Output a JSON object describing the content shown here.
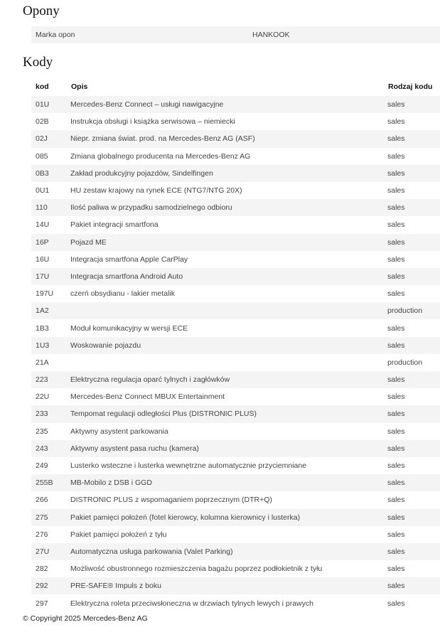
{
  "opony": {
    "title": "Opony",
    "label": "Marka opon",
    "value": "HANKOOK"
  },
  "kody": {
    "title": "Kody",
    "headers": [
      "kod",
      "Opis",
      "Rodzaj kodu"
    ],
    "rows": [
      [
        "01U",
        "Mercedes-Benz Connect – usługi nawigacyjne",
        "sales"
      ],
      [
        "02B",
        "Instrukcja obsługi i książka serwisowa – niemiecki",
        "sales"
      ],
      [
        "02J",
        "Niepr. zmiana świat. prod. na Mercedes-Benz AG (ASF)",
        "sales"
      ],
      [
        "085",
        "Zmiana globalnego producenta na Mercedes-Benz AG",
        "sales"
      ],
      [
        "0B3",
        "Zakład produkcyjny pojazdów, Sindelfingen",
        "sales"
      ],
      [
        "0U1",
        "HU zestaw krajowy na rynek ECE (NTG7/NTG 20X)",
        "sales"
      ],
      [
        "110",
        "Ilość paliwa w przypadku samodzielnego odbioru",
        "sales"
      ],
      [
        "14U",
        "Pakiet integracji smartfona",
        "sales"
      ],
      [
        "16P",
        "Pojazd ME",
        "sales"
      ],
      [
        "16U",
        "Integracja smartfona Apple CarPlay",
        "sales"
      ],
      [
        "17U",
        "Integracja smartfona Android Auto",
        "sales"
      ],
      [
        "197U",
        "czerń obsydianu - lakier metalik",
        "sales"
      ],
      [
        "1A2",
        "",
        "production"
      ],
      [
        "1B3",
        "Moduł komunikacyjny w wersji ECE",
        "sales"
      ],
      [
        "1U3",
        "Woskowanie pojazdu",
        "sales"
      ],
      [
        "21A",
        "",
        "production"
      ],
      [
        "223",
        "Elektryczna regulacja oparć tylnych i zagłówków",
        "sales"
      ],
      [
        "22U",
        "Mercedes-Benz Connect MBUX Entertainment",
        "sales"
      ],
      [
        "233",
        "Tempomat regulacji odległości Plus (DISTRONIC PLUS)",
        "sales"
      ],
      [
        "235",
        "Aktywny asystent parkowania",
        "sales"
      ],
      [
        "243",
        "Aktywny asystent pasa ruchu (kamera)",
        "sales"
      ],
      [
        "249",
        "Lusterko wsteczne i lusterka wewnętrzne automatycznie przyciemniane",
        "sales"
      ],
      [
        "255B",
        "MB-Mobilo z DSB i GGD",
        "sales"
      ],
      [
        "266",
        "DISTRONIC PLUS z wspomaganiem poprzecznym (DTR+Q)",
        "sales"
      ],
      [
        "275",
        "Pakiet pamięci położeń (fotel kierowcy, kolumna kierownicy i lusterka)",
        "sales"
      ],
      [
        "276",
        "Pakiet pamięci położeń z tyłu",
        "sales"
      ],
      [
        "27U",
        "Automatyczna usługa parkowania (Valet Parking)",
        "sales"
      ],
      [
        "282",
        "Możliwość obustronnego rozmieszczenia bagażu poprzez podłokietnik z tyłu",
        "sales"
      ],
      [
        "292",
        "PRE-SAFE® Impuls z boku",
        "sales"
      ],
      [
        "297",
        "Elektryczna roleta przeciwsłoneczna w drzwiach tylnych lewych i prawych",
        "sales"
      ]
    ]
  },
  "footer": "© Copyright 2025 Mercedes-Benz AG"
}
